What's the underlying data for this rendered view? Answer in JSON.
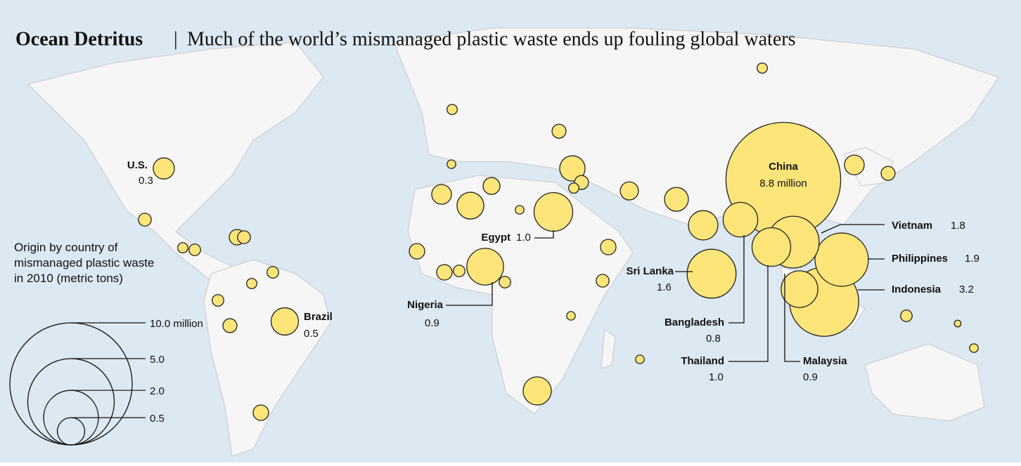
{
  "chart_data": {
    "type": "bubble-map",
    "title": "Ocean Detritus",
    "subtitle": "Much of the world’s mismanaged plastic waste ends up fouling global waters",
    "color": "#fde57a",
    "categories": [
      "U.S.",
      "Brazil",
      "Egypt",
      "Nigeria",
      "Sri Lanka",
      "Bangladesh",
      "Thailand",
      "Malaysia",
      "China",
      "Vietnam",
      "Philippines",
      "Indonesia"
    ],
    "values": [
      0.3,
      0.5,
      1.0,
      0.9,
      1.6,
      0.8,
      1.0,
      0.9,
      8.8,
      1.8,
      1.9,
      3.2
    ],
    "value_labels": [
      "0.3",
      "0.5",
      "1.0",
      "0.9",
      "1.6",
      "0.8",
      "1.0",
      "0.9",
      "8.8 million",
      "1.8",
      "1.9",
      "3.2"
    ],
    "other_values": [
      0.07,
      0.07,
      0.13,
      0.43,
      0.13,
      0.07,
      0.22,
      0.38,
      0.58,
      0.26,
      0.13,
      0.26,
      0.48,
      0.19,
      0.11,
      0.07,
      0.09,
      0.16,
      0.11,
      0.16,
      0.16,
      0.09,
      0.16,
      0.11,
      0.53,
      0.16,
      0.13,
      0.09,
      0.09,
      0.07,
      0.09,
      0.05,
      0.05,
      0.09,
      0.05,
      0.05,
      0.05,
      0.03
    ],
    "legend_title": "Origin by country of mismanaged plastic waste in 2010",
    "legend_units": "(metric tons)",
    "size_ticks": [
      {
        "value": 10,
        "label": "10.0 million"
      },
      {
        "value": 5,
        "label": "5.0"
      },
      {
        "value": 2,
        "label": "2.0"
      },
      0.5
    ]
  }
}
